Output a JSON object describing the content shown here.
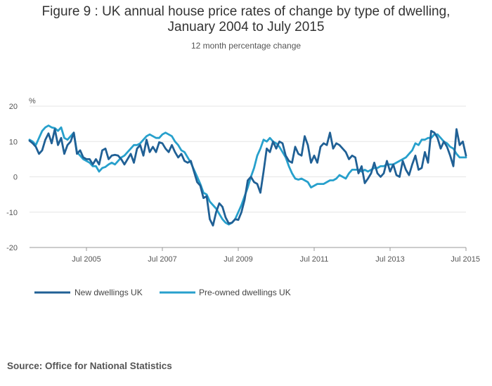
{
  "title_line1": "Figure 9 : UK annual house price rates of change by type of dwelling,",
  "title_line2": "January 2004 to July 2015",
  "subtitle": "12 month percentage change",
  "source": "Source: Office for National Statistics",
  "colors": {
    "new": "#206095",
    "preowned": "#27a0cc",
    "grid": "#e5e5e5",
    "axis": "#999999"
  },
  "chart_data": {
    "type": "line",
    "ylabel": "%",
    "ylim": [
      -20,
      20
    ],
    "yticks": [
      -20,
      -10,
      0,
      10,
      20
    ],
    "xlim": [
      "2004-01",
      "2015-07"
    ],
    "xticks": [
      {
        "date": "2005-07",
        "label": "Jul 2005"
      },
      {
        "date": "2007-07",
        "label": "Jul 2007"
      },
      {
        "date": "2009-07",
        "label": "Jul 2009"
      },
      {
        "date": "2011-07",
        "label": "Jul 2011"
      },
      {
        "date": "2013-07",
        "label": "Jul 2013"
      },
      {
        "date": "2015-07",
        "label": "Jul 2015"
      }
    ],
    "legend_position": "bottom-left",
    "series": [
      {
        "name": "New dwellings UK",
        "points": [
          [
            "2004-01",
            10.2
          ],
          [
            "2004-02",
            9.5
          ],
          [
            "2004-03",
            8.5
          ],
          [
            "2004-04",
            6.5
          ],
          [
            "2004-05",
            7.5
          ],
          [
            "2004-06",
            10.5
          ],
          [
            "2004-07",
            12.3
          ],
          [
            "2004-08",
            9.5
          ],
          [
            "2004-09",
            13.5
          ],
          [
            "2004-10",
            9.0
          ],
          [
            "2004-11",
            11.0
          ],
          [
            "2004-12",
            6.5
          ],
          [
            "2005-01",
            9.0
          ],
          [
            "2005-02",
            10.0
          ],
          [
            "2005-03",
            12.5
          ],
          [
            "2005-04",
            6.5
          ],
          [
            "2005-05",
            7.5
          ],
          [
            "2005-06",
            5.5
          ],
          [
            "2005-07",
            5.0
          ],
          [
            "2005-08",
            5.0
          ],
          [
            "2005-09",
            3.5
          ],
          [
            "2005-10",
            5.0
          ],
          [
            "2005-11",
            3.5
          ],
          [
            "2005-12",
            7.5
          ],
          [
            "2006-01",
            8.0
          ],
          [
            "2006-02",
            5.0
          ],
          [
            "2006-03",
            6.0
          ],
          [
            "2006-04",
            6.2
          ],
          [
            "2006-05",
            6.0
          ],
          [
            "2006-06",
            5.0
          ],
          [
            "2006-07",
            3.5
          ],
          [
            "2006-08",
            5.0
          ],
          [
            "2006-09",
            6.5
          ],
          [
            "2006-10",
            4.0
          ],
          [
            "2006-11",
            8.0
          ],
          [
            "2006-12",
            9.0
          ],
          [
            "2007-01",
            6.0
          ],
          [
            "2007-02",
            10.5
          ],
          [
            "2007-03",
            7.0
          ],
          [
            "2007-04",
            8.5
          ],
          [
            "2007-05",
            7.0
          ],
          [
            "2007-06",
            9.8
          ],
          [
            "2007-07",
            9.5
          ],
          [
            "2007-08",
            8.0
          ],
          [
            "2007-09",
            7.0
          ],
          [
            "2007-10",
            9.0
          ],
          [
            "2007-11",
            7.0
          ],
          [
            "2007-12",
            5.5
          ],
          [
            "2008-01",
            6.5
          ],
          [
            "2008-02",
            4.5
          ],
          [
            "2008-03",
            4.0
          ],
          [
            "2008-04",
            4.5
          ],
          [
            "2008-05",
            1.5
          ],
          [
            "2008-06",
            -1.5
          ],
          [
            "2008-07",
            -2.5
          ],
          [
            "2008-08",
            -6.0
          ],
          [
            "2008-09",
            -5.5
          ],
          [
            "2008-10",
            -12.0
          ],
          [
            "2008-11",
            -13.8
          ],
          [
            "2008-12",
            -10.0
          ],
          [
            "2009-01",
            -7.5
          ],
          [
            "2009-02",
            -8.5
          ],
          [
            "2009-03",
            -11.5
          ],
          [
            "2009-04",
            -13.2
          ],
          [
            "2009-05",
            -13.0
          ],
          [
            "2009-06",
            -12.0
          ],
          [
            "2009-07",
            -12.2
          ],
          [
            "2009-08",
            -10.0
          ],
          [
            "2009-09",
            -6.5
          ],
          [
            "2009-10",
            -1.0
          ],
          [
            "2009-11",
            0.0
          ],
          [
            "2009-12",
            -1.5
          ],
          [
            "2010-01",
            -2.0
          ],
          [
            "2010-02",
            -4.5
          ],
          [
            "2010-03",
            1.5
          ],
          [
            "2010-04",
            8.0
          ],
          [
            "2010-05",
            7.0
          ],
          [
            "2010-06",
            10.0
          ],
          [
            "2010-07",
            8.0
          ],
          [
            "2010-08",
            10.0
          ],
          [
            "2010-09",
            9.5
          ],
          [
            "2010-10",
            6.0
          ],
          [
            "2010-11",
            4.5
          ],
          [
            "2010-12",
            4.0
          ],
          [
            "2011-01",
            8.5
          ],
          [
            "2011-02",
            6.5
          ],
          [
            "2011-03",
            6.0
          ],
          [
            "2011-04",
            11.5
          ],
          [
            "2011-05",
            9.0
          ],
          [
            "2011-06",
            4.0
          ],
          [
            "2011-07",
            6.0
          ],
          [
            "2011-08",
            4.0
          ],
          [
            "2011-09",
            8.5
          ],
          [
            "2011-10",
            9.5
          ],
          [
            "2011-11",
            9.0
          ],
          [
            "2011-12",
            12.5
          ],
          [
            "2012-01",
            8.0
          ],
          [
            "2012-02",
            9.5
          ],
          [
            "2012-03",
            9.0
          ],
          [
            "2012-04",
            8.0
          ],
          [
            "2012-05",
            7.0
          ],
          [
            "2012-06",
            5.0
          ],
          [
            "2012-07",
            6.0
          ],
          [
            "2012-08",
            5.5
          ],
          [
            "2012-09",
            1.0
          ],
          [
            "2012-10",
            3.0
          ],
          [
            "2012-11",
            -1.8
          ],
          [
            "2012-12",
            -0.5
          ],
          [
            "2013-01",
            1.0
          ],
          [
            "2013-02",
            4.0
          ],
          [
            "2013-03",
            1.0
          ],
          [
            "2013-04",
            0.0
          ],
          [
            "2013-05",
            1.0
          ],
          [
            "2013-06",
            4.5
          ],
          [
            "2013-07",
            1.5
          ],
          [
            "2013-08",
            3.5
          ],
          [
            "2013-09",
            0.5
          ],
          [
            "2013-10",
            0.0
          ],
          [
            "2013-11",
            4.5
          ],
          [
            "2013-12",
            2.0
          ],
          [
            "2014-01",
            0.5
          ],
          [
            "2014-02",
            3.5
          ],
          [
            "2014-03",
            6.0
          ],
          [
            "2014-04",
            2.0
          ],
          [
            "2014-05",
            2.5
          ],
          [
            "2014-06",
            7.0
          ],
          [
            "2014-07",
            4.0
          ],
          [
            "2014-08",
            13.0
          ],
          [
            "2014-09",
            12.5
          ],
          [
            "2014-10",
            11.0
          ],
          [
            "2014-11",
            8.0
          ],
          [
            "2014-12",
            10.0
          ],
          [
            "2015-01",
            8.5
          ],
          [
            "2015-02",
            6.0
          ],
          [
            "2015-03",
            3.0
          ],
          [
            "2015-04",
            13.5
          ],
          [
            "2015-05",
            9.0
          ],
          [
            "2015-06",
            10.0
          ],
          [
            "2015-07",
            6.0
          ]
        ]
      },
      {
        "name": "Pre-owned dwellings UK",
        "points": [
          [
            "2004-01",
            10.5
          ],
          [
            "2004-02",
            10.0
          ],
          [
            "2004-03",
            9.0
          ],
          [
            "2004-04",
            11.0
          ],
          [
            "2004-05",
            13.0
          ],
          [
            "2004-06",
            14.0
          ],
          [
            "2004-07",
            14.5
          ],
          [
            "2004-08",
            14.0
          ],
          [
            "2004-09",
            13.8
          ],
          [
            "2004-10",
            13.0
          ],
          [
            "2004-11",
            14.0
          ],
          [
            "2004-12",
            11.0
          ],
          [
            "2005-01",
            10.5
          ],
          [
            "2005-02",
            11.5
          ],
          [
            "2005-03",
            12.5
          ],
          [
            "2005-04",
            7.0
          ],
          [
            "2005-05",
            6.0
          ],
          [
            "2005-06",
            5.0
          ],
          [
            "2005-07",
            4.5
          ],
          [
            "2005-08",
            4.0
          ],
          [
            "2005-09",
            3.0
          ],
          [
            "2005-10",
            3.0
          ],
          [
            "2005-11",
            1.5
          ],
          [
            "2005-12",
            2.5
          ],
          [
            "2006-01",
            2.8
          ],
          [
            "2006-02",
            3.5
          ],
          [
            "2006-03",
            4.0
          ],
          [
            "2006-04",
            3.5
          ],
          [
            "2006-05",
            4.5
          ],
          [
            "2006-06",
            5.5
          ],
          [
            "2006-07",
            6.0
          ],
          [
            "2006-08",
            7.0
          ],
          [
            "2006-09",
            8.0
          ],
          [
            "2006-10",
            9.0
          ],
          [
            "2006-11",
            9.0
          ],
          [
            "2006-12",
            9.5
          ],
          [
            "2007-01",
            10.5
          ],
          [
            "2007-02",
            11.5
          ],
          [
            "2007-03",
            12.0
          ],
          [
            "2007-04",
            11.5
          ],
          [
            "2007-05",
            11.0
          ],
          [
            "2007-06",
            11.0
          ],
          [
            "2007-07",
            12.0
          ],
          [
            "2007-08",
            12.5
          ],
          [
            "2007-09",
            12.0
          ],
          [
            "2007-10",
            11.5
          ],
          [
            "2007-11",
            10.0
          ],
          [
            "2007-12",
            9.0
          ],
          [
            "2008-01",
            7.5
          ],
          [
            "2008-02",
            7.0
          ],
          [
            "2008-03",
            5.5
          ],
          [
            "2008-04",
            4.0
          ],
          [
            "2008-05",
            2.0
          ],
          [
            "2008-06",
            0.0
          ],
          [
            "2008-07",
            -2.0
          ],
          [
            "2008-08",
            -4.5
          ],
          [
            "2008-09",
            -5.0
          ],
          [
            "2008-10",
            -7.0
          ],
          [
            "2008-11",
            -8.0
          ],
          [
            "2008-12",
            -9.0
          ],
          [
            "2009-01",
            -10.5
          ],
          [
            "2009-02",
            -12.0
          ],
          [
            "2009-03",
            -13.0
          ],
          [
            "2009-04",
            -13.5
          ],
          [
            "2009-05",
            -13.0
          ],
          [
            "2009-06",
            -12.0
          ],
          [
            "2009-07",
            -10.0
          ],
          [
            "2009-08",
            -8.0
          ],
          [
            "2009-09",
            -5.5
          ],
          [
            "2009-10",
            -3.0
          ],
          [
            "2009-11",
            0.0
          ],
          [
            "2009-12",
            2.5
          ],
          [
            "2010-01",
            6.0
          ],
          [
            "2010-02",
            8.0
          ],
          [
            "2010-03",
            10.5
          ],
          [
            "2010-04",
            10.0
          ],
          [
            "2010-05",
            11.0
          ],
          [
            "2010-06",
            10.0
          ],
          [
            "2010-07",
            9.5
          ],
          [
            "2010-08",
            8.5
          ],
          [
            "2010-09",
            7.0
          ],
          [
            "2010-10",
            5.5
          ],
          [
            "2010-11",
            3.0
          ],
          [
            "2010-12",
            1.0
          ],
          [
            "2011-01",
            -0.5
          ],
          [
            "2011-02",
            -0.8
          ],
          [
            "2011-03",
            -0.5
          ],
          [
            "2011-04",
            -1.0
          ],
          [
            "2011-05",
            -1.5
          ],
          [
            "2011-06",
            -3.0
          ],
          [
            "2011-07",
            -2.5
          ],
          [
            "2011-08",
            -2.0
          ],
          [
            "2011-09",
            -2.0
          ],
          [
            "2011-10",
            -2.0
          ],
          [
            "2011-11",
            -1.5
          ],
          [
            "2011-12",
            -1.0
          ],
          [
            "2012-01",
            -1.0
          ],
          [
            "2012-02",
            -0.5
          ],
          [
            "2012-03",
            0.5
          ],
          [
            "2012-04",
            0.0
          ],
          [
            "2012-05",
            -0.5
          ],
          [
            "2012-06",
            1.0
          ],
          [
            "2012-07",
            2.0
          ],
          [
            "2012-08",
            2.0
          ],
          [
            "2012-09",
            2.0
          ],
          [
            "2012-10",
            1.5
          ],
          [
            "2012-11",
            2.0
          ],
          [
            "2012-12",
            1.5
          ],
          [
            "2013-01",
            2.0
          ],
          [
            "2013-02",
            2.5
          ],
          [
            "2013-03",
            2.5
          ],
          [
            "2013-04",
            3.0
          ],
          [
            "2013-05",
            3.0
          ],
          [
            "2013-06",
            3.5
          ],
          [
            "2013-07",
            3.5
          ],
          [
            "2013-08",
            3.5
          ],
          [
            "2013-09",
            4.0
          ],
          [
            "2013-10",
            4.5
          ],
          [
            "2013-11",
            5.0
          ],
          [
            "2013-12",
            5.5
          ],
          [
            "2014-01",
            6.5
          ],
          [
            "2014-02",
            7.5
          ],
          [
            "2014-03",
            9.5
          ],
          [
            "2014-04",
            9.0
          ],
          [
            "2014-05",
            10.5
          ],
          [
            "2014-06",
            10.5
          ],
          [
            "2014-07",
            11.0
          ],
          [
            "2014-08",
            11.0
          ],
          [
            "2014-09",
            12.0
          ],
          [
            "2014-10",
            12.0
          ],
          [
            "2014-11",
            11.0
          ],
          [
            "2014-12",
            10.0
          ],
          [
            "2015-01",
            9.5
          ],
          [
            "2015-02",
            8.5
          ],
          [
            "2015-03",
            8.0
          ],
          [
            "2015-04",
            6.5
          ],
          [
            "2015-05",
            5.5
          ],
          [
            "2015-06",
            5.5
          ],
          [
            "2015-07",
            5.5
          ]
        ]
      }
    ]
  }
}
